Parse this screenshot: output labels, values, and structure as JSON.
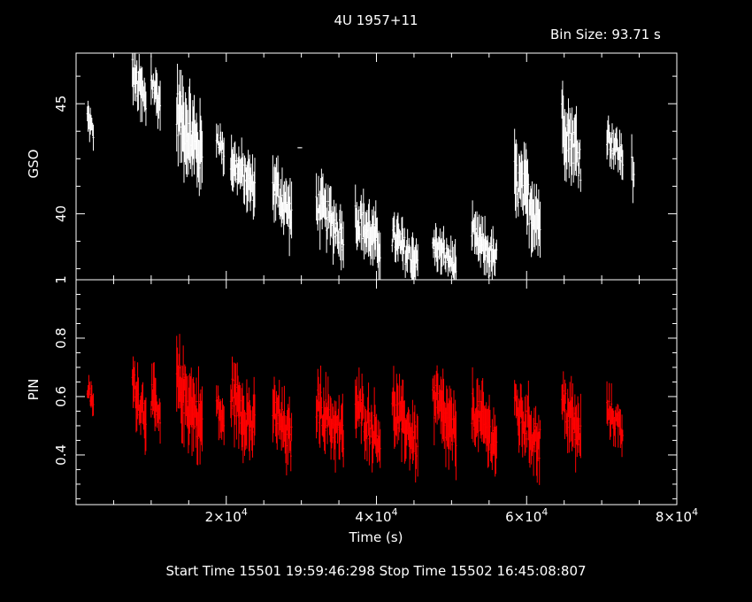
{
  "header": {
    "title": "4U 1957+11",
    "bin_size": "Bin Size: 93.71 s"
  },
  "footer": {
    "times": "Start Time 15501 19:59:46:298     Stop Time 15502 16:45:08:807"
  },
  "chart_data": [
    {
      "type": "scatter",
      "panel": "top",
      "ylabel": "GSO",
      "color": "#ffffff",
      "ylim": [
        37.0,
        47.3
      ],
      "yticks": [
        40,
        45
      ],
      "ytick_labels": [
        "40",
        "45"
      ],
      "segments": [
        {
          "x0": 1500,
          "x1": 2300,
          "lo": 43.3,
          "hi": 44.8
        },
        {
          "x0": 7500,
          "x1": 9300,
          "lo": 44.2,
          "hi": 47.2
        },
        {
          "x0": 10000,
          "x1": 11200,
          "lo": 44.3,
          "hi": 46.8
        },
        {
          "x0": 13400,
          "x1": 16800,
          "lo": 41.6,
          "hi": 45.7
        },
        {
          "x0": 18700,
          "x1": 19700,
          "lo": 42.3,
          "hi": 44.1
        },
        {
          "x0": 20600,
          "x1": 23800,
          "lo": 40.5,
          "hi": 43.0
        },
        {
          "x0": 26200,
          "x1": 28700,
          "lo": 39.2,
          "hi": 42.1
        },
        {
          "x0": 29600,
          "x1": 30000,
          "lo": 43.0,
          "hi": 43.0
        },
        {
          "x0": 32000,
          "x1": 35600,
          "lo": 38.3,
          "hi": 41.2
        },
        {
          "x0": 37200,
          "x1": 40500,
          "lo": 37.8,
          "hi": 40.6
        },
        {
          "x0": 42100,
          "x1": 45500,
          "lo": 37.1,
          "hi": 39.6
        },
        {
          "x0": 47500,
          "x1": 50600,
          "lo": 37.2,
          "hi": 39.1
        },
        {
          "x0": 52700,
          "x1": 56000,
          "lo": 37.3,
          "hi": 39.6
        },
        {
          "x0": 58400,
          "x1": 61800,
          "lo": 38.7,
          "hi": 42.6
        },
        {
          "x0": 64700,
          "x1": 67200,
          "lo": 41.5,
          "hi": 45.2
        },
        {
          "x0": 70700,
          "x1": 72800,
          "lo": 42.0,
          "hi": 44.1
        },
        {
          "x0": 74000,
          "x1": 74300,
          "lo": 40.5,
          "hi": 43.5
        }
      ]
    },
    {
      "type": "scatter",
      "panel": "bottom",
      "ylabel": "PIN",
      "xlabel": "Time (s)",
      "color": "#ff0000",
      "xlim": [
        0,
        80000
      ],
      "ylim": [
        0.23,
        1.0
      ],
      "yticks": [
        0.4,
        0.6,
        0.8,
        1.0
      ],
      "ytick_labels": [
        "0.4",
        "0.6",
        "0.8",
        "1"
      ],
      "xticks": [
        20000,
        40000,
        60000,
        80000
      ],
      "xtick_mantissas": [
        "2",
        "4",
        "6",
        "8"
      ],
      "xtick_base": "×10",
      "xtick_exponent": "4",
      "segments": [
        {
          "x0": 1500,
          "x1": 2300,
          "lo": 0.55,
          "hi": 0.65
        },
        {
          "x0": 7500,
          "x1": 9300,
          "lo": 0.48,
          "hi": 0.7
        },
        {
          "x0": 10000,
          "x1": 11200,
          "lo": 0.45,
          "hi": 0.66
        },
        {
          "x0": 13400,
          "x1": 16800,
          "lo": 0.43,
          "hi": 0.72
        },
        {
          "x0": 18700,
          "x1": 19700,
          "lo": 0.45,
          "hi": 0.62
        },
        {
          "x0": 20600,
          "x1": 23800,
          "lo": 0.42,
          "hi": 0.68
        },
        {
          "x0": 26200,
          "x1": 28700,
          "lo": 0.38,
          "hi": 0.62
        },
        {
          "x0": 32000,
          "x1": 35600,
          "lo": 0.4,
          "hi": 0.64
        },
        {
          "x0": 37200,
          "x1": 40500,
          "lo": 0.4,
          "hi": 0.63
        },
        {
          "x0": 42100,
          "x1": 45500,
          "lo": 0.38,
          "hi": 0.62
        },
        {
          "x0": 47500,
          "x1": 50600,
          "lo": 0.38,
          "hi": 0.66
        },
        {
          "x0": 52700,
          "x1": 56000,
          "lo": 0.38,
          "hi": 0.62
        },
        {
          "x0": 58400,
          "x1": 61800,
          "lo": 0.38,
          "hi": 0.62
        },
        {
          "x0": 64700,
          "x1": 67200,
          "lo": 0.4,
          "hi": 0.64
        },
        {
          "x0": 70700,
          "x1": 72800,
          "lo": 0.44,
          "hi": 0.6
        }
      ]
    }
  ]
}
